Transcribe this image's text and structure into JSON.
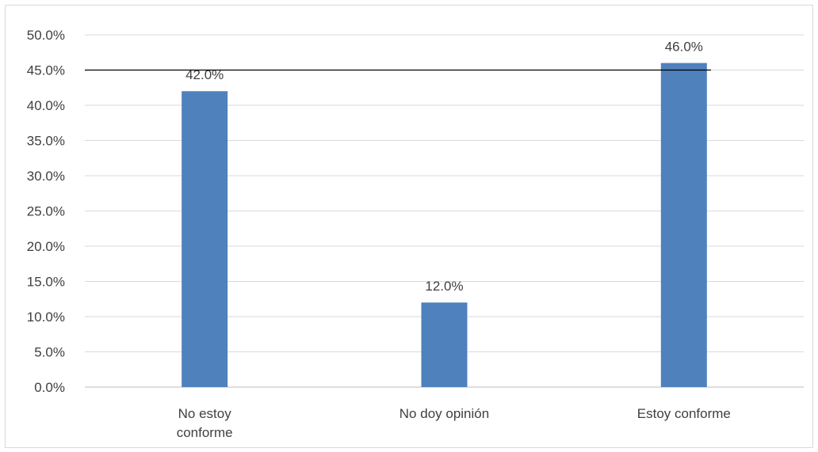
{
  "chart_data": {
    "type": "bar",
    "categories": [
      "No estoy conforme",
      "No doy opinión",
      "Estoy conforme"
    ],
    "category_label_lines": [
      [
        "No estoy",
        "conforme"
      ],
      [
        "No doy opinión"
      ],
      [
        "Estoy conforme"
      ]
    ],
    "values": [
      42.0,
      12.0,
      46.0
    ],
    "data_labels": [
      "42.0%",
      "12.0%",
      "46.0%"
    ],
    "y_ticks": [
      "0.0%",
      "5.0%",
      "10.0%",
      "15.0%",
      "20.0%",
      "25.0%",
      "30.0%",
      "35.0%",
      "40.0%",
      "45.0%",
      "50.0%"
    ],
    "ylim": [
      0,
      50
    ],
    "reference_line": 45,
    "grid": true,
    "legend": "none",
    "title": "",
    "xlabel": "",
    "ylabel": "",
    "colors": {
      "bar": "#4f81bd",
      "grid": "#d9d9d9",
      "reference_line": "#000000",
      "axis": "#bfbfbf",
      "text": "#404040"
    }
  }
}
